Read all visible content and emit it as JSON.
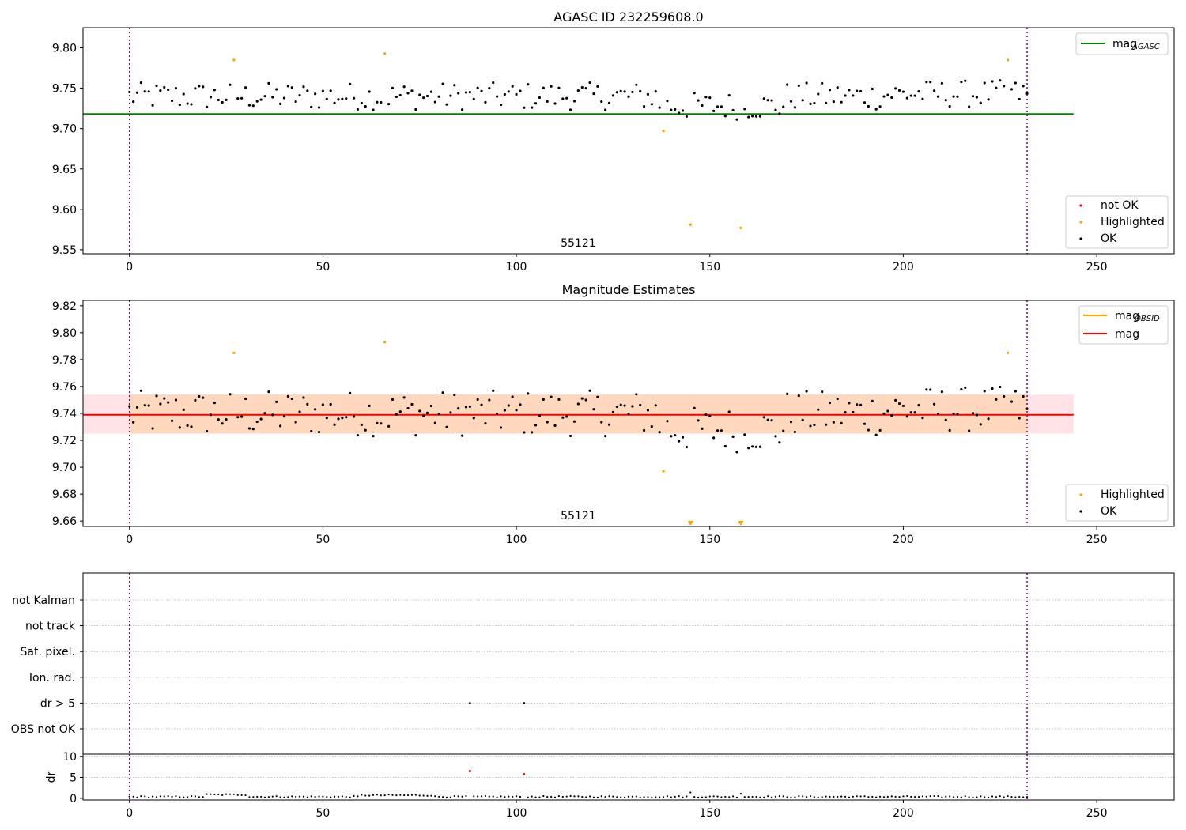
{
  "chart_data": [
    {
      "type": "scatter",
      "title": "AGASC ID 232259608.0",
      "ylim": [
        9.545,
        9.825
      ],
      "xlim": [
        -12,
        270
      ],
      "yticks": [
        9.55,
        9.6,
        9.65,
        9.7,
        9.75,
        9.8
      ],
      "ytick_labels": [
        "9.55",
        "9.60",
        "9.65",
        "9.70",
        "9.75",
        "9.80"
      ],
      "xticks": [
        0,
        50,
        100,
        150,
        200,
        250
      ],
      "xtick_labels": [
        "0",
        "50",
        "100",
        "150",
        "200",
        "250"
      ],
      "obsid_label": "55121",
      "obsid_x": 116,
      "vlines": [
        0,
        232
      ],
      "mag_agasc": 9.718,
      "line_x": [
        -12,
        244
      ],
      "highlighted": {
        "x": [
          27,
          66,
          138,
          145,
          158,
          227
        ],
        "y": [
          9.785,
          9.793,
          9.697,
          9.581,
          9.577,
          9.785
        ]
      },
      "legend_top": {
        "mathtext": "mag",
        "sub": "AGASC",
        "color": "#008000"
      },
      "legend_bottom": [
        "not OK",
        "Highlighted",
        "OK"
      ],
      "colors": {
        "ok": "#000000",
        "highlighted": "#ffa500",
        "not_ok": "#ff0000",
        "agasc": "#008000"
      }
    },
    {
      "type": "scatter",
      "title": "Magnitude Estimates",
      "ylim": [
        9.656,
        9.824
      ],
      "xlim": [
        -12,
        270
      ],
      "yticks": [
        9.66,
        9.68,
        9.7,
        9.72,
        9.74,
        9.76,
        9.78,
        9.8,
        9.82
      ],
      "ytick_labels": [
        "9.66",
        "9.68",
        "9.70",
        "9.72",
        "9.74",
        "9.76",
        "9.78",
        "9.80",
        "9.82"
      ],
      "xticks": [
        0,
        50,
        100,
        150,
        200,
        250
      ],
      "xtick_labels": [
        "0",
        "50",
        "100",
        "150",
        "200",
        "250"
      ],
      "obsid_label": "55121",
      "obsid_x": 116,
      "vlines": [
        0,
        232
      ],
      "mag": 9.739,
      "mag_band": [
        9.725,
        9.754
      ],
      "mag_obsid_band": [
        9.725,
        9.754
      ],
      "line_x": [
        -12,
        244
      ],
      "highlighted": {
        "x": [
          27,
          66,
          138,
          227
        ],
        "y": [
          9.785,
          9.793,
          9.697,
          9.785
        ]
      },
      "highlighted_offscale": {
        "x": [
          145,
          158
        ]
      },
      "legend_top": [
        {
          "mathtext": "mag",
          "sub": "OBSID",
          "color": "#ffa500"
        },
        {
          "label": "mag",
          "color": "#ff0000"
        }
      ],
      "legend_bottom": [
        "Highlighted",
        "OK"
      ],
      "colors": {
        "ok": "#000000",
        "highlighted": "#ffa500",
        "mag": "#ff0000",
        "band_obsid": "#ffa500",
        "band_mag": "#ff9aa8"
      }
    },
    {
      "type": "scatter",
      "categories": [
        "not Kalman",
        "not track",
        "Sat. pixel.",
        "Ion. rad.",
        "dr > 5",
        "OBS not OK"
      ],
      "xlim": [
        -12,
        270
      ],
      "vlines": [
        0,
        232
      ],
      "flags": {
        "dr > 5": [
          88,
          102
        ]
      },
      "colors": {
        "flag": "#000000",
        "grid": "#b0b0b0"
      }
    },
    {
      "type": "scatter",
      "ylabel": "dr",
      "ylim": [
        -0.4,
        10.6
      ],
      "yticks": [
        0,
        5,
        10
      ],
      "ytick_labels": [
        "0",
        "5",
        "10"
      ],
      "xlim": [
        -12,
        270
      ],
      "xticks": [
        0,
        50,
        100,
        150,
        200,
        250
      ],
      "xtick_labels": [
        "0",
        "50",
        "100",
        "150",
        "200",
        "250"
      ],
      "vlines": [
        0,
        232
      ],
      "dr_outliers": {
        "x": [
          88,
          102
        ],
        "y": [
          6.6,
          5.8
        ]
      },
      "colors": {
        "ok": "#000000",
        "outlier": "#ff0000",
        "grid": "#b0b0b0"
      }
    }
  ]
}
